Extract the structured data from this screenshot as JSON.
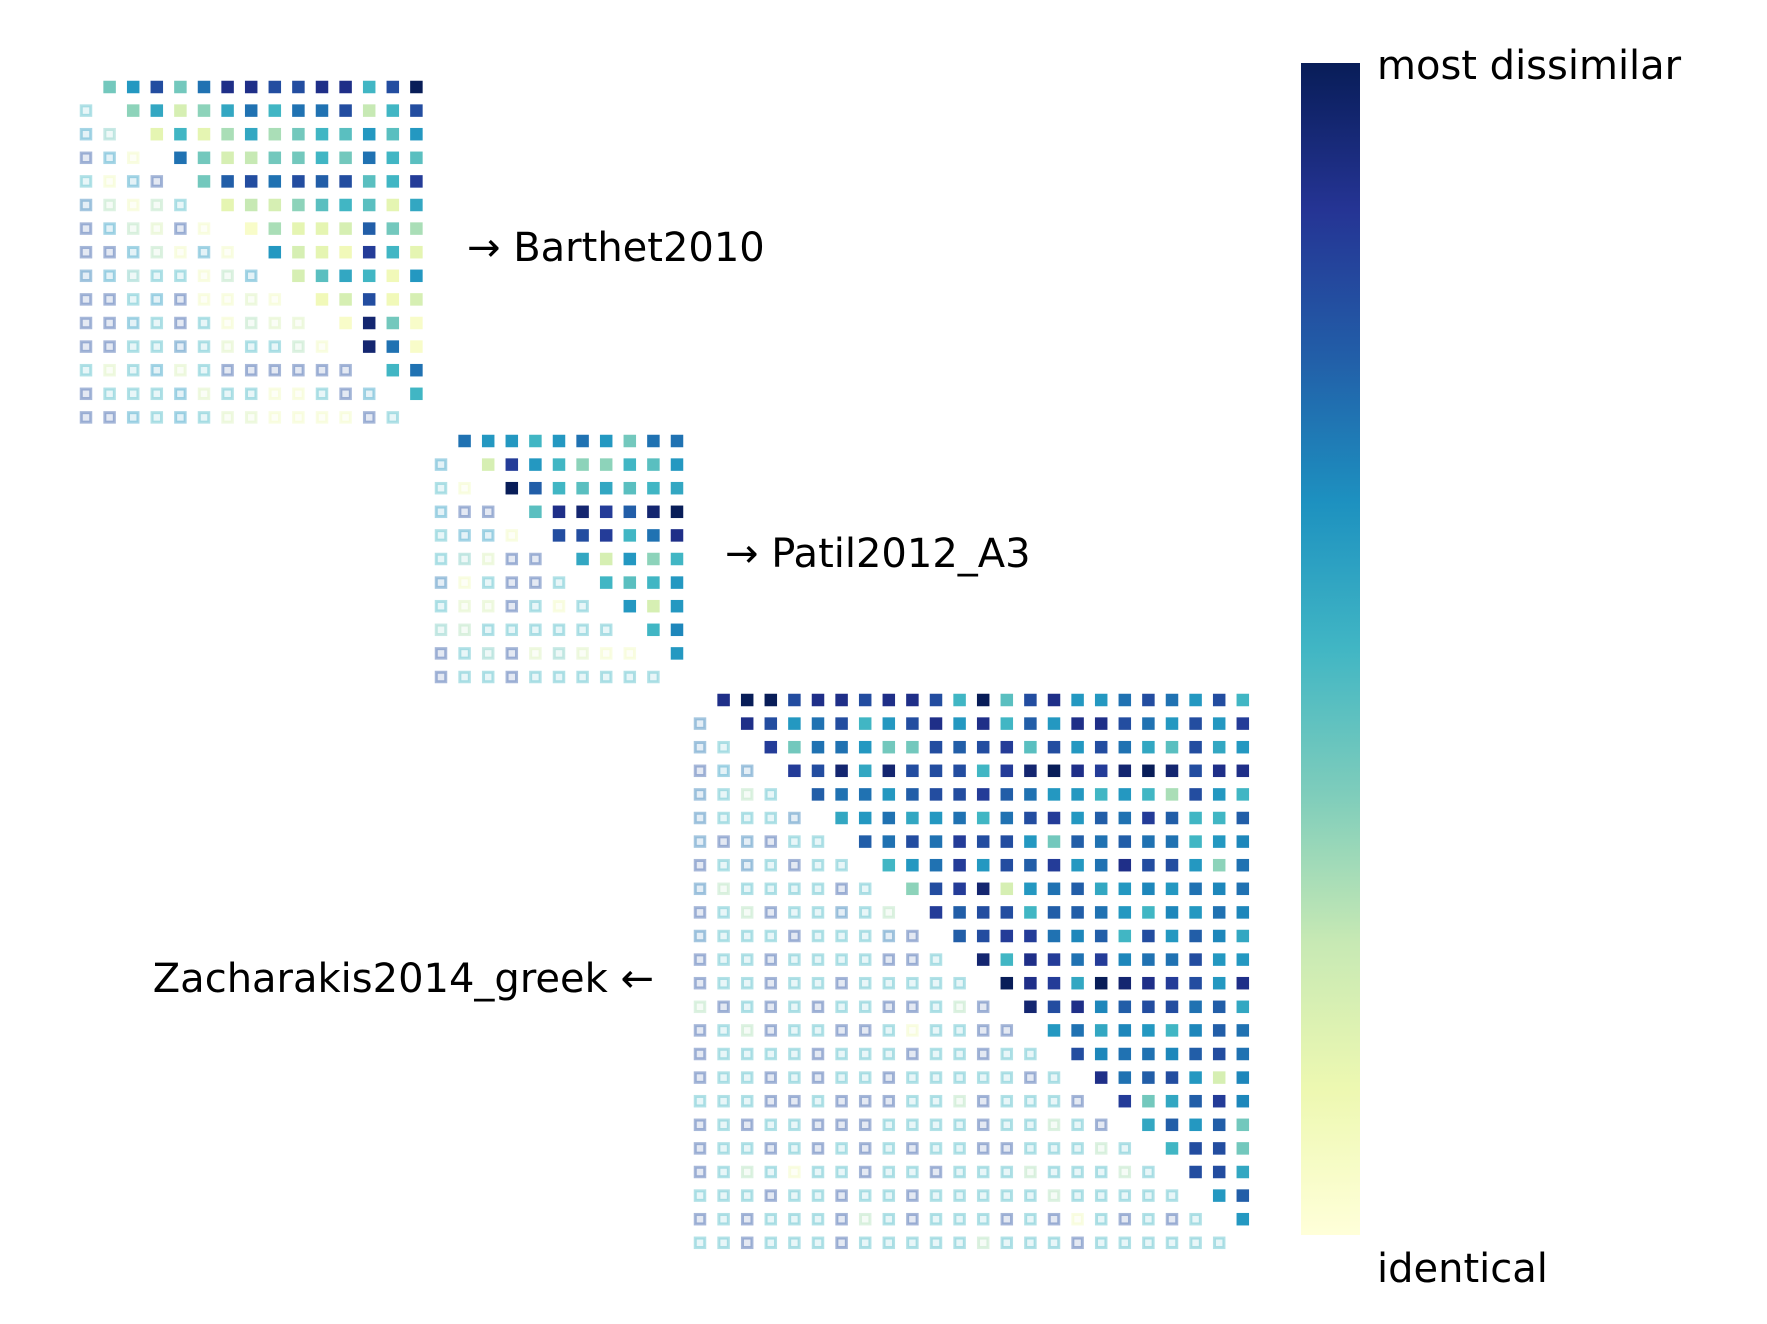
{
  "chart_data": {
    "type": "triangular-heatmap",
    "clim": [
      0,
      1
    ],
    "colormap": [
      "#ffffd9",
      "#edf8b1",
      "#c7e9b4",
      "#7fcdbb",
      "#41b6c4",
      "#1d91c0",
      "#225ea8",
      "#253494",
      "#081d58"
    ],
    "colorbar": {
      "top_label": "most dissimilar",
      "bottom_label": "identical"
    },
    "matrices": [
      {
        "label": "→ Barthet2010",
        "upper": [
          [
            0.4,
            0.6,
            0.8,
            0.4,
            0.7,
            0.9,
            0.9,
            0.8,
            0.8,
            0.9,
            0.9,
            0.5,
            0.8,
            1.0
          ],
          [
            0.35,
            0.55,
            0.2,
            0.35,
            0.55,
            0.7,
            0.5,
            0.7,
            0.7,
            0.8,
            0.25,
            0.5,
            0.8
          ],
          [
            0.15,
            0.5,
            0.15,
            0.3,
            0.55,
            0.3,
            0.4,
            0.5,
            0.45,
            0.6,
            0.45,
            0.6
          ],
          [
            0.7,
            0.4,
            0.2,
            0.25,
            0.4,
            0.4,
            0.5,
            0.4,
            0.7,
            0.5,
            0.45
          ],
          [
            0.4,
            0.75,
            0.8,
            0.7,
            0.8,
            0.75,
            0.8,
            0.45,
            0.5,
            0.85
          ],
          [
            0.15,
            0.25,
            0.2,
            0.35,
            0.45,
            0.5,
            0.45,
            0.15,
            0.55
          ],
          [
            0.05,
            0.3,
            0.15,
            0.15,
            0.2,
            0.75,
            0.4,
            0.3
          ],
          [
            0.6,
            0.2,
            0.15,
            0.1,
            0.85,
            0.5,
            0.15
          ],
          [
            0.2,
            0.45,
            0.55,
            0.5,
            0.1,
            0.6
          ],
          [
            0.1,
            0.2,
            0.8,
            0.1,
            0.2
          ],
          [
            0.05,
            0.95,
            0.4,
            0.05
          ],
          [
            0.95,
            0.7,
            0.05
          ],
          [
            0.5,
            0.7
          ],
          [
            0.5
          ]
        ],
        "lower": [
          [
            0.5
          ],
          [
            0.6,
            0.4
          ],
          [
            0.8,
            0.6,
            0.1
          ],
          [
            0.5,
            0.1,
            0.6,
            0.8
          ],
          [
            0.7,
            0.3,
            0.1,
            0.3,
            0.5
          ],
          [
            0.8,
            0.6,
            0.3,
            0.2,
            0.8,
            0.1
          ],
          [
            0.8,
            0.8,
            0.6,
            0.3,
            0.1,
            0.6,
            0.1
          ],
          [
            0.7,
            0.6,
            0.4,
            0.5,
            0.5,
            0.1,
            0.3,
            0.6
          ],
          [
            0.8,
            0.8,
            0.5,
            0.6,
            0.8,
            0.1,
            0.1,
            0.2,
            0.1
          ],
          [
            0.8,
            0.8,
            0.6,
            0.5,
            0.8,
            0.5,
            0.1,
            0.3,
            0.2,
            0.2
          ],
          [
            0.8,
            0.8,
            0.5,
            0.5,
            0.7,
            0.5,
            0.2,
            0.5,
            0.5,
            0.3,
            0.1
          ],
          [
            0.5,
            0.2,
            0.5,
            0.6,
            0.2,
            0.5,
            0.8,
            0.8,
            0.8,
            0.8,
            0.8,
            0.8
          ],
          [
            0.8,
            0.5,
            0.5,
            0.5,
            0.6,
            0.2,
            0.5,
            0.5,
            0.1,
            0.1,
            0.5,
            0.8,
            0.6
          ],
          [
            0.8,
            0.8,
            0.6,
            0.5,
            0.6,
            0.5,
            0.2,
            0.2,
            0.1,
            0.1,
            0.1,
            0.1,
            0.8,
            0.5
          ]
        ]
      },
      {
        "label": "→ Patil2012_A3",
        "upper": [
          [
            0.7,
            0.6,
            0.6,
            0.5,
            0.6,
            0.7,
            0.6,
            0.4,
            0.7,
            0.7
          ],
          [
            0.2,
            0.85,
            0.6,
            0.5,
            0.35,
            0.35,
            0.5,
            0.45,
            0.6
          ],
          [
            1.0,
            0.75,
            0.5,
            0.45,
            0.55,
            0.45,
            0.5,
            0.55
          ],
          [
            0.45,
            0.9,
            0.95,
            0.85,
            0.75,
            0.95,
            1.0
          ],
          [
            0.8,
            0.8,
            0.85,
            0.5,
            0.7,
            0.9
          ],
          [
            0.55,
            0.2,
            0.6,
            0.35,
            0.5
          ],
          [
            0.5,
            0.45,
            0.5,
            0.6
          ],
          [
            0.6,
            0.2,
            0.6
          ],
          [
            0.5,
            0.65
          ],
          [
            0.6
          ]
        ],
        "lower": [
          [
            0.6
          ],
          [
            0.5,
            0.1
          ],
          [
            0.6,
            0.8,
            0.8
          ],
          [
            0.5,
            0.6,
            0.6,
            0.1
          ],
          [
            0.5,
            0.4,
            0.2,
            0.8,
            0.8
          ],
          [
            0.7,
            0.1,
            0.5,
            0.8,
            0.8,
            0.5
          ],
          [
            0.5,
            0.2,
            0.2,
            0.8,
            0.5,
            0.1,
            0.5
          ],
          [
            0.4,
            0.3,
            0.5,
            0.5,
            0.5,
            0.5,
            0.5,
            0.5
          ],
          [
            0.8,
            0.5,
            0.4,
            0.8,
            0.2,
            0.4,
            0.2,
            0.1,
            0.1
          ],
          [
            0.8,
            0.5,
            0.5,
            0.8,
            0.5,
            0.5,
            0.5,
            0.5,
            0.5,
            0.5
          ]
        ]
      },
      {
        "label": "Zacharakis2014_greek ←",
        "upper": [
          [
            0.9,
            1.0,
            1.0,
            0.8,
            0.9,
            0.9,
            0.8,
            0.9,
            0.9,
            0.8,
            0.5,
            1.0,
            0.45,
            0.8,
            0.9,
            0.6,
            0.6,
            0.7,
            0.8,
            0.7,
            0.6,
            0.8,
            0.5
          ],
          [
            0.9,
            0.8,
            0.6,
            0.7,
            0.8,
            0.5,
            0.6,
            0.8,
            0.9,
            0.6,
            0.9,
            0.5,
            0.75,
            0.6,
            0.9,
            0.9,
            0.8,
            0.7,
            0.6,
            0.8,
            0.6,
            0.85
          ],
          [
            0.85,
            0.4,
            0.7,
            0.7,
            0.6,
            0.4,
            0.4,
            0.8,
            0.75,
            0.8,
            0.85,
            0.45,
            0.8,
            0.6,
            0.8,
            0.7,
            0.55,
            0.45,
            0.8,
            0.55,
            0.6
          ],
          [
            0.85,
            0.8,
            0.95,
            0.55,
            0.95,
            0.8,
            0.8,
            0.8,
            0.5,
            0.85,
            0.95,
            1.0,
            0.9,
            0.85,
            0.95,
            1.0,
            0.95,
            0.8,
            0.9,
            0.9
          ],
          [
            0.75,
            0.7,
            0.7,
            0.6,
            0.75,
            0.8,
            0.8,
            0.85,
            0.75,
            0.7,
            0.6,
            0.6,
            0.5,
            0.6,
            0.5,
            0.3,
            0.8,
            0.6,
            0.5
          ],
          [
            0.55,
            0.6,
            0.7,
            0.55,
            0.6,
            0.7,
            0.5,
            0.7,
            0.8,
            0.85,
            0.6,
            0.75,
            0.7,
            0.85,
            0.75,
            0.5,
            0.5,
            0.75
          ],
          [
            0.75,
            0.7,
            0.8,
            0.7,
            0.85,
            0.8,
            0.8,
            0.6,
            0.4,
            0.75,
            0.7,
            0.75,
            0.7,
            0.7,
            0.5,
            0.6,
            0.65
          ],
          [
            0.5,
            0.6,
            0.7,
            0.85,
            0.6,
            0.8,
            0.75,
            0.85,
            0.6,
            0.7,
            0.9,
            0.8,
            0.8,
            0.6,
            0.35,
            0.7
          ],
          [
            0.35,
            0.8,
            0.85,
            0.95,
            0.2,
            0.6,
            0.7,
            0.75,
            0.55,
            0.6,
            0.65,
            0.6,
            0.7,
            0.65,
            0.7
          ],
          [
            0.85,
            0.75,
            0.8,
            0.8,
            0.5,
            0.75,
            0.75,
            0.7,
            0.6,
            0.5,
            0.65,
            0.6,
            0.7,
            0.65
          ],
          [
            0.75,
            0.8,
            0.85,
            0.85,
            0.7,
            0.65,
            0.75,
            0.5,
            0.8,
            0.6,
            0.75,
            0.65,
            0.55
          ],
          [
            0.95,
            0.5,
            0.9,
            0.85,
            0.7,
            0.85,
            0.65,
            0.7,
            0.7,
            0.8,
            0.6,
            0.6
          ],
          [
            1.0,
            0.9,
            0.85,
            0.55,
            1.0,
            0.95,
            0.9,
            0.85,
            0.8,
            0.6,
            0.9
          ],
          [
            0.95,
            0.8,
            0.9,
            0.65,
            0.75,
            0.8,
            0.8,
            0.7,
            0.75,
            0.55
          ],
          [
            0.6,
            0.7,
            0.55,
            0.65,
            0.6,
            0.5,
            0.65,
            0.75,
            0.7
          ],
          [
            0.8,
            0.65,
            0.7,
            0.7,
            0.65,
            0.75,
            0.8,
            0.7
          ],
          [
            0.9,
            0.7,
            0.75,
            0.8,
            0.6,
            0.2,
            0.65
          ],
          [
            0.85,
            0.4,
            0.55,
            0.75,
            0.85,
            0.65
          ],
          [
            0.55,
            0.75,
            0.6,
            0.75,
            0.4
          ],
          [
            0.5,
            0.8,
            0.8,
            0.4
          ],
          [
            0.8,
            0.8,
            0.55
          ],
          [
            0.6,
            0.75
          ],
          [
            0.6
          ]
        ],
        "lower": [
          [
            0.7
          ],
          [
            0.7,
            0.5
          ],
          [
            0.8,
            0.6,
            0.7
          ],
          [
            0.7,
            0.5,
            0.3,
            0.5
          ],
          [
            0.7,
            0.5,
            0.5,
            0.5,
            0.7
          ],
          [
            0.7,
            0.8,
            0.7,
            0.8,
            0.5,
            0.5
          ],
          [
            0.8,
            0.5,
            0.7,
            0.5,
            0.8,
            0.5,
            0.5
          ],
          [
            0.7,
            0.3,
            0.5,
            0.5,
            0.5,
            0.5,
            0.8,
            0.5
          ],
          [
            0.8,
            0.5,
            0.3,
            0.8,
            0.5,
            0.5,
            0.7,
            0.5,
            0.3
          ],
          [
            0.7,
            0.5,
            0.5,
            0.5,
            0.8,
            0.5,
            0.5,
            0.5,
            0.7,
            0.8
          ],
          [
            0.8,
            0.5,
            0.5,
            0.8,
            0.5,
            0.5,
            0.5,
            0.5,
            0.8,
            0.8,
            0.5
          ],
          [
            0.8,
            0.5,
            0.5,
            0.8,
            0.5,
            0.5,
            0.8,
            0.5,
            0.5,
            0.5,
            0.5,
            0.5
          ],
          [
            0.3,
            0.8,
            0.5,
            0.8,
            0.5,
            0.8,
            0.5,
            0.5,
            0.8,
            0.8,
            0.5,
            0.3,
            0.8
          ],
          [
            0.8,
            0.5,
            0.3,
            0.8,
            0.5,
            0.5,
            0.8,
            0.8,
            0.5,
            0.1,
            0.5,
            0.5,
            0.8,
            0.8
          ],
          [
            0.8,
            0.5,
            0.5,
            0.5,
            0.5,
            0.8,
            0.5,
            0.5,
            0.5,
            0.8,
            0.5,
            0.5,
            0.8,
            0.5,
            0.5
          ],
          [
            0.8,
            0.5,
            0.5,
            0.8,
            0.5,
            0.8,
            0.5,
            0.5,
            0.8,
            0.5,
            0.5,
            0.5,
            0.5,
            0.5,
            0.8,
            0.5
          ],
          [
            0.5,
            0.5,
            0.5,
            0.8,
            0.8,
            0.5,
            0.8,
            0.8,
            0.8,
            0.5,
            0.5,
            0.3,
            0.8,
            0.5,
            0.5,
            0.5,
            0.8
          ],
          [
            0.8,
            0.5,
            0.8,
            0.5,
            0.5,
            0.8,
            0.8,
            0.8,
            0.5,
            0.5,
            0.5,
            0.5,
            0.8,
            0.5,
            0.5,
            0.3,
            0.5,
            0.8
          ],
          [
            0.8,
            0.5,
            0.5,
            0.8,
            0.5,
            0.8,
            0.5,
            0.8,
            0.5,
            0.8,
            0.5,
            0.5,
            0.8,
            0.8,
            0.5,
            0.5,
            0.5,
            0.3,
            0.5
          ],
          [
            0.8,
            0.5,
            0.3,
            0.5,
            0.1,
            0.5,
            0.5,
            0.8,
            0.5,
            0.5,
            0.8,
            0.5,
            0.5,
            0.5,
            0.3,
            0.5,
            0.5,
            0.5,
            0.3,
            0.5
          ],
          [
            0.5,
            0.5,
            0.5,
            0.8,
            0.5,
            0.5,
            0.8,
            0.5,
            0.5,
            0.8,
            0.5,
            0.5,
            0.5,
            0.5,
            0.5,
            0.3,
            0.5,
            0.5,
            0.5,
            0.5,
            0.5
          ],
          [
            0.8,
            0.5,
            0.8,
            0.5,
            0.5,
            0.5,
            0.8,
            0.3,
            0.5,
            0.8,
            0.5,
            0.5,
            0.5,
            0.8,
            0.5,
            0.8,
            0.1,
            0.5,
            0.8,
            0.5,
            0.8,
            0.5
          ],
          [
            0.5,
            0.5,
            0.8,
            0.5,
            0.5,
            0.5,
            0.8,
            0.5,
            0.5,
            0.5,
            0.5,
            0.5,
            0.3,
            0.5,
            0.5,
            0.5,
            0.8,
            0.5,
            0.5,
            0.5,
            0.5,
            0.5,
            0.5
          ]
        ]
      }
    ]
  }
}
